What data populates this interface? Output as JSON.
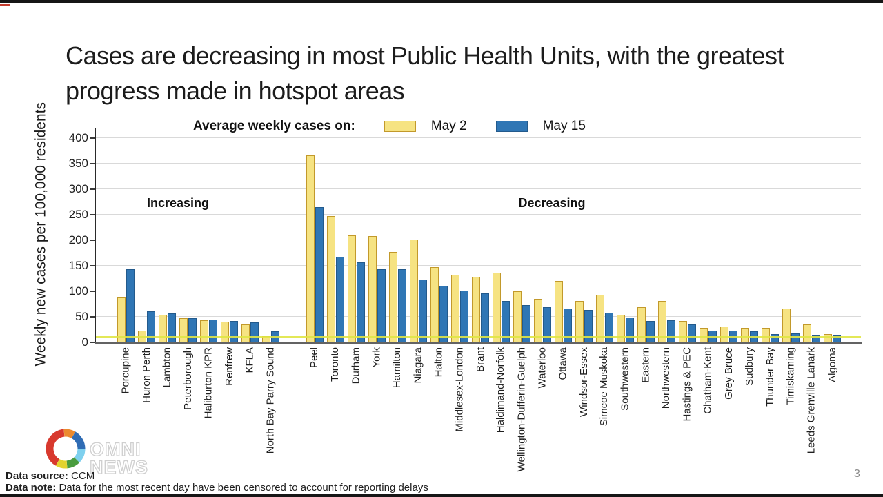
{
  "page": {
    "page_number": "3"
  },
  "title": {
    "text": "Cases are decreasing in most Public Health Units, with the greatest progress made in hotspot areas"
  },
  "legend": {
    "label": "Average weekly cases on:",
    "series": [
      {
        "name": "May 2",
        "color": "#F6E382",
        "border": "#C2992B"
      },
      {
        "name": "May 15",
        "color": "#2F76B5",
        "border": "#235A8C"
      }
    ]
  },
  "annotations": {
    "increasing": "Increasing",
    "decreasing": "Decreasing"
  },
  "footer": {
    "source_label": "Data source:",
    "source_value": "CCM",
    "note_label": "Data note:",
    "note_value": "Data for the most recent day have been censored to account for reporting delays"
  },
  "logo": {
    "line1": "OMNI",
    "line2": "NEWS"
  },
  "chart_data": {
    "type": "bar",
    "title": "Cases are decreasing in most Public Health Units, with the greatest progress made in hotspot areas",
    "xlabel": "",
    "ylabel": "Weekly new cases per 100,000 residents",
    "ylim": [
      0,
      400
    ],
    "ytick_step": 50,
    "grid": true,
    "legend_position": "top",
    "reference_line": {
      "value": 10,
      "color": "#E0E545"
    },
    "group_labels": {
      "increasing": {
        "label": "Increasing",
        "categories_span": [
          0,
          7
        ]
      },
      "decreasing": {
        "label": "Decreasing",
        "categories_span": [
          8,
          33
        ]
      }
    },
    "categories": [
      "Porcupine",
      "Huron Perth",
      "Lambton",
      "Peterborough",
      "Haliburton KPR",
      "Renfrew",
      "KFLA",
      "North Bay Parry Sound",
      "Peel",
      "Toronto",
      "Durham",
      "York",
      "Hamilton",
      "Niagara",
      "Halton",
      "Middlesex-London",
      "Brant",
      "Haldimand-Norfolk",
      "Wellington-Dufferin-Guelph",
      "Waterloo",
      "Ottawa",
      "Windsor-Essex",
      "Simcoe Muskoka",
      "Southwestern",
      "Eastern",
      "Northwestern",
      "Hastings & PEC",
      "Chatham-Kent",
      "Grey Bruce",
      "Sudbury",
      "Thunder Bay",
      "Timiskaming",
      "Leeds Grenville Lanark",
      "Algoma"
    ],
    "series": [
      {
        "name": "May 2",
        "color": "#F6E382",
        "border": "#C2992B",
        "values": [
          88,
          22,
          53,
          46,
          42,
          40,
          35,
          12,
          365,
          247,
          209,
          208,
          177,
          201,
          147,
          132,
          128,
          136,
          100,
          84,
          119,
          80,
          92,
          54,
          68,
          80,
          41,
          28,
          31,
          28,
          28,
          66,
          34,
          16
        ]
      },
      {
        "name": "May 15",
        "color": "#2F76B5",
        "border": "#235A8C",
        "values": [
          142,
          60,
          56,
          47,
          44,
          41,
          39,
          21,
          264,
          167,
          156,
          143,
          142,
          122,
          110,
          101,
          95,
          80,
          72,
          68,
          66,
          63,
          58,
          48,
          41,
          42,
          34,
          22,
          22,
          21,
          16,
          17,
          13,
          13
        ]
      }
    ]
  }
}
